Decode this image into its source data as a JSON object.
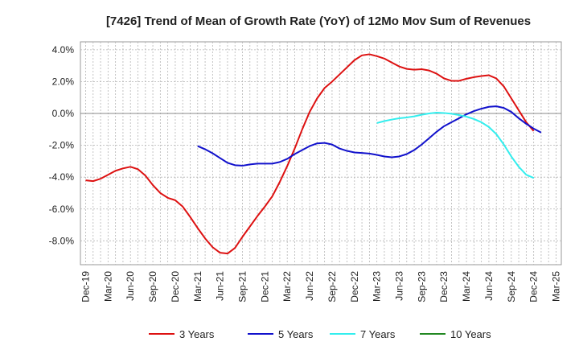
{
  "chart_data": {
    "type": "line",
    "title": "[7426]  Trend of Mean of Growth Rate (YoY) of 12Mo Mov Sum of Revenues",
    "xlabel": "",
    "ylabel": "",
    "ylim": [
      -9.5,
      4.5
    ],
    "y_ticks": [
      4.0,
      2.0,
      0.0,
      -2.0,
      -4.0,
      -6.0,
      -8.0
    ],
    "y_tick_labels": [
      "4.0%",
      "2.0%",
      "0.0%",
      "-2.0%",
      "-4.0%",
      "-6.0%",
      "-8.0%"
    ],
    "x_tick_labels": [
      "Dec-19",
      "Mar-20",
      "Jun-20",
      "Sep-20",
      "Dec-20",
      "Mar-21",
      "Jun-21",
      "Sep-21",
      "Dec-21",
      "Mar-22",
      "Jun-22",
      "Sep-22",
      "Dec-22",
      "Mar-23",
      "Jun-23",
      "Sep-23",
      "Dec-23",
      "Mar-24",
      "Jun-24",
      "Sep-24",
      "Dec-24",
      "Mar-25"
    ],
    "months": [
      "Dec-19",
      "Jan-20",
      "Feb-20",
      "Mar-20",
      "Apr-20",
      "May-20",
      "Jun-20",
      "Jul-20",
      "Aug-20",
      "Sep-20",
      "Oct-20",
      "Nov-20",
      "Dec-20",
      "Jan-21",
      "Feb-21",
      "Mar-21",
      "Apr-21",
      "May-21",
      "Jun-21",
      "Jul-21",
      "Aug-21",
      "Sep-21",
      "Oct-21",
      "Nov-21",
      "Dec-21",
      "Jan-22",
      "Feb-22",
      "Mar-22",
      "Apr-22",
      "May-22",
      "Jun-22",
      "Jul-22",
      "Aug-22",
      "Sep-22",
      "Oct-22",
      "Nov-22",
      "Dec-22",
      "Jan-23",
      "Feb-23",
      "Mar-23",
      "Apr-23",
      "May-23",
      "Jun-23",
      "Jul-23",
      "Aug-23",
      "Sep-23",
      "Oct-23",
      "Nov-23",
      "Dec-23",
      "Jan-24",
      "Feb-24",
      "Mar-24",
      "Apr-24",
      "May-24",
      "Jun-24",
      "Jul-24",
      "Aug-24",
      "Sep-24",
      "Oct-24",
      "Nov-24",
      "Dec-24",
      "Jan-25",
      "Feb-25",
      "Mar-25"
    ],
    "series": [
      {
        "name": "3 Years",
        "color": "#dd1111",
        "start_index": 0,
        "values": [
          -4.2,
          -4.25,
          -4.1,
          -3.85,
          -3.6,
          -3.45,
          -3.35,
          -3.5,
          -3.9,
          -4.5,
          -5.0,
          -5.3,
          -5.45,
          -5.85,
          -6.5,
          -7.2,
          -7.85,
          -8.4,
          -8.75,
          -8.8,
          -8.45,
          -7.75,
          -7.1,
          -6.45,
          -5.85,
          -5.2,
          -4.3,
          -3.3,
          -2.2,
          -1.0,
          0.1,
          0.95,
          1.6,
          2.0,
          2.45,
          2.9,
          3.35,
          3.65,
          3.72,
          3.6,
          3.45,
          3.2,
          2.95,
          2.8,
          2.75,
          2.78,
          2.7,
          2.5,
          2.2,
          2.05,
          2.05,
          2.18,
          2.28,
          2.35,
          2.4,
          2.2,
          1.7,
          0.95,
          0.2,
          -0.55,
          -1.1
        ]
      },
      {
        "name": "5 Years",
        "color": "#1111cc",
        "start_index": 15,
        "values": [
          -2.05,
          -2.25,
          -2.5,
          -2.8,
          -3.1,
          -3.25,
          -3.28,
          -3.2,
          -3.15,
          -3.15,
          -3.15,
          -3.05,
          -2.85,
          -2.55,
          -2.3,
          -2.05,
          -1.88,
          -1.85,
          -1.95,
          -2.2,
          -2.35,
          -2.45,
          -2.48,
          -2.52,
          -2.6,
          -2.7,
          -2.75,
          -2.7,
          -2.55,
          -2.3,
          -1.95,
          -1.55,
          -1.15,
          -0.8,
          -0.55,
          -0.3,
          -0.05,
          0.15,
          0.3,
          0.42,
          0.45,
          0.35,
          0.1,
          -0.3,
          -0.65,
          -0.95,
          -1.2
        ]
      },
      {
        "name": "7 Years",
        "color": "#33eeee",
        "start_index": 39,
        "values": [
          -0.6,
          -0.48,
          -0.38,
          -0.3,
          -0.25,
          -0.18,
          -0.08,
          0.0,
          0.05,
          0.03,
          -0.02,
          -0.1,
          -0.2,
          -0.35,
          -0.55,
          -0.85,
          -1.3,
          -1.95,
          -2.7,
          -3.35,
          -3.85,
          -4.05
        ]
      },
      {
        "name": "10 Years",
        "color": "#228822",
        "start_index": 0,
        "values": []
      }
    ],
    "legend_position": "bottom",
    "grid": true
  }
}
